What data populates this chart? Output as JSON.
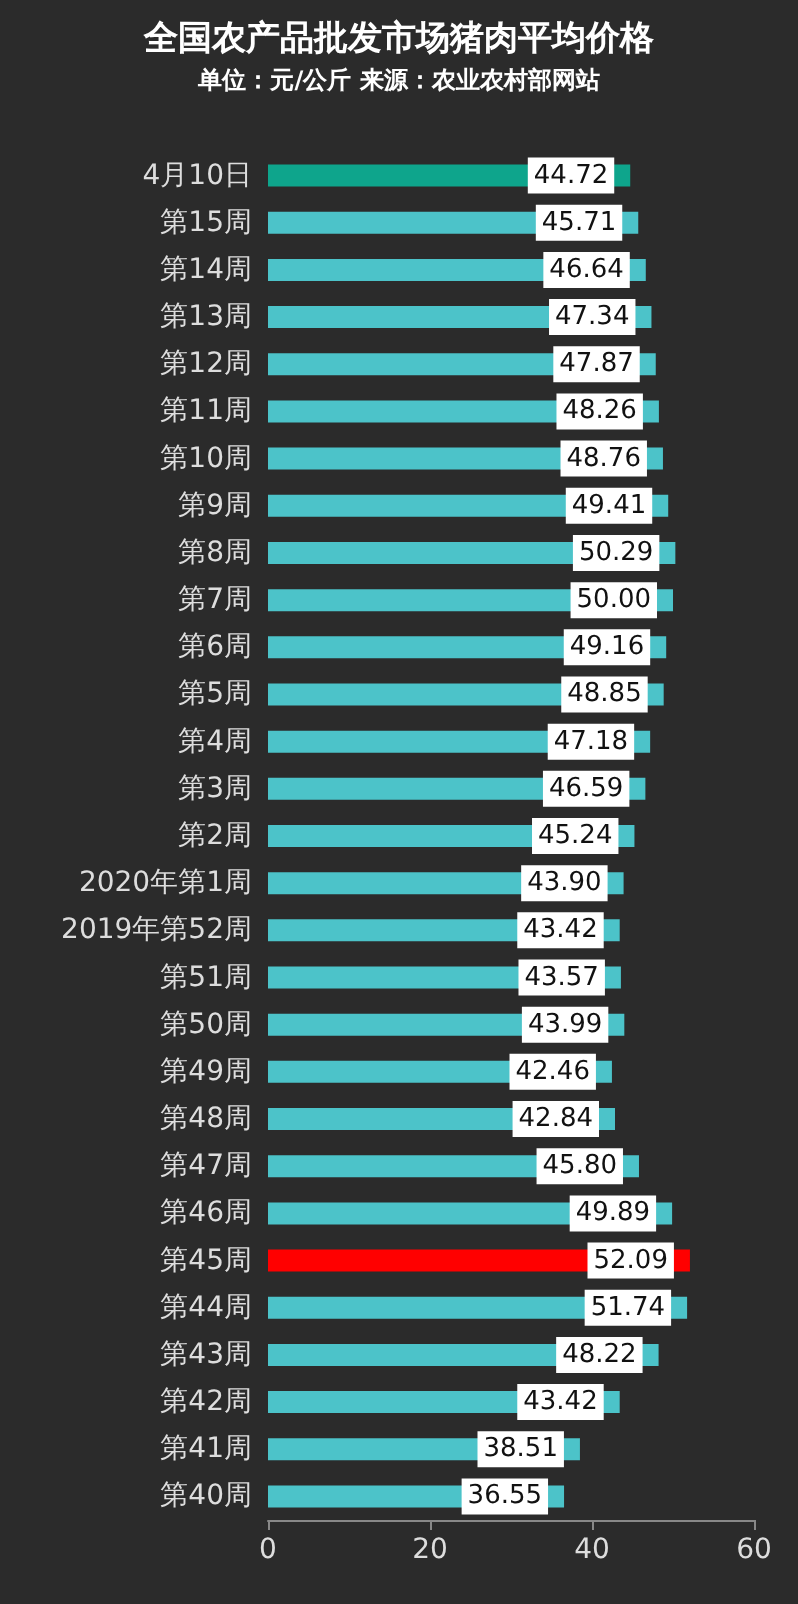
{
  "chart_data": {
    "type": "bar",
    "orientation": "horizontal",
    "title": "全国农产品批发市场猪肉平均价格",
    "subtitle": "单位：元/公斤 来源：农业农村部网站",
    "categories": [
      "4月10日",
      "第15周",
      "第14周",
      "第13周",
      "第12周",
      "第11周",
      "第10周",
      "第9周",
      "第8周",
      "第7周",
      "第6周",
      "第5周",
      "第4周",
      "第3周",
      "第2周",
      "2020年第1周",
      "2019年第52周",
      "第51周",
      "第50周",
      "第49周",
      "第48周",
      "第47周",
      "第46周",
      "第45周",
      "第44周",
      "第43周",
      "第42周",
      "第41周",
      "第40周"
    ],
    "values": [
      44.72,
      45.71,
      46.64,
      47.34,
      47.87,
      48.26,
      48.76,
      49.41,
      50.29,
      50.0,
      49.16,
      48.85,
      47.18,
      46.59,
      45.24,
      43.9,
      43.42,
      43.57,
      43.99,
      42.46,
      42.84,
      45.8,
      49.89,
      52.09,
      51.74,
      48.22,
      43.42,
      38.51,
      36.55
    ],
    "value_labels": [
      "44.72",
      "45.71",
      "46.64",
      "47.34",
      "47.87",
      "48.26",
      "48.76",
      "49.41",
      "50.29",
      "50.00",
      "49.16",
      "48.85",
      "47.18",
      "46.59",
      "45.24",
      "43.90",
      "43.42",
      "43.57",
      "43.99",
      "42.46",
      "42.84",
      "45.80",
      "49.89",
      "52.09",
      "51.74",
      "48.22",
      "43.42",
      "38.51",
      "36.55"
    ],
    "colors": [
      "#0ea58c",
      "#4cc3c9",
      "#4cc3c9",
      "#4cc3c9",
      "#4cc3c9",
      "#4cc3c9",
      "#4cc3c9",
      "#4cc3c9",
      "#4cc3c9",
      "#4cc3c9",
      "#4cc3c9",
      "#4cc3c9",
      "#4cc3c9",
      "#4cc3c9",
      "#4cc3c9",
      "#4cc3c9",
      "#4cc3c9",
      "#4cc3c9",
      "#4cc3c9",
      "#4cc3c9",
      "#4cc3c9",
      "#4cc3c9",
      "#4cc3c9",
      "#ff0000",
      "#4cc3c9",
      "#4cc3c9",
      "#4cc3c9",
      "#4cc3c9",
      "#4cc3c9"
    ],
    "xlim": [
      0,
      60
    ],
    "xticks": [
      0,
      20,
      40,
      60
    ],
    "grid": false
  }
}
